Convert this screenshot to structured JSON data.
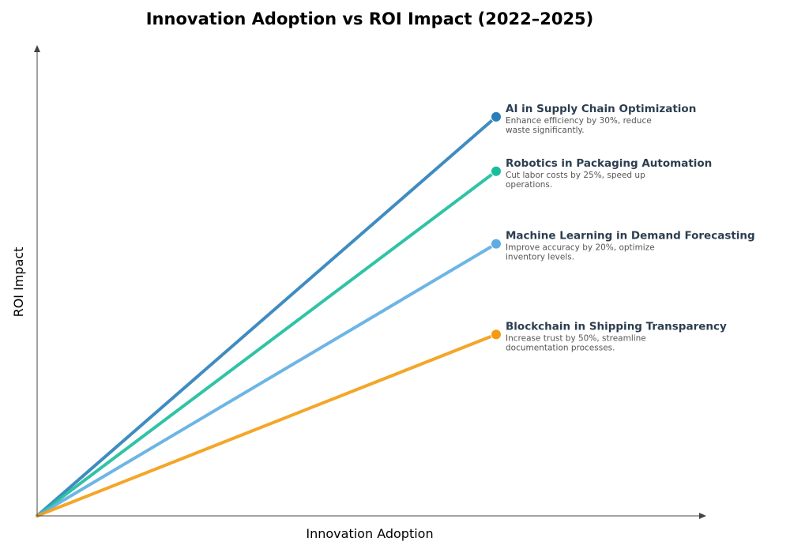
{
  "chart_data": {
    "type": "line",
    "title": "Innovation Adoption vs ROI Impact (2022–2025)",
    "xlabel": "Innovation Adoption",
    "ylabel": "ROI Impact",
    "xlim": [
      0,
      1.46
    ],
    "ylim": [
      0,
      1.46
    ],
    "grid": false,
    "legend": "none",
    "series": [
      {
        "id": "ai",
        "name": "AI in Supply Chain Optimization",
        "description_lines": [
          "Enhance efficiency by 30%, reduce",
          "waste significantly."
        ],
        "color": "#2a7fba",
        "points": [
          [
            0,
            0
          ],
          [
            1.0,
            0.88
          ]
        ]
      },
      {
        "id": "robotics",
        "name": "Robotics in Packaging Automation",
        "description_lines": [
          "Cut labor costs by 25%, speed up",
          "operations."
        ],
        "color": "#1abc9c",
        "points": [
          [
            0,
            0
          ],
          [
            1.0,
            0.76
          ]
        ]
      },
      {
        "id": "ml",
        "name": "Machine Learning in Demand Forecasting",
        "description_lines": [
          "Improve accuracy by 20%, optimize",
          "inventory levels."
        ],
        "color": "#5dade2",
        "points": [
          [
            0,
            0
          ],
          [
            1.0,
            0.6
          ]
        ]
      },
      {
        "id": "blockchain",
        "name": "Blockchain in Shipping Transparency",
        "description_lines": [
          "Increase trust by 50%, streamline",
          "documentation processes."
        ],
        "color": "#f39c12",
        "points": [
          [
            0,
            0
          ],
          [
            1.0,
            0.4
          ]
        ]
      }
    ]
  }
}
